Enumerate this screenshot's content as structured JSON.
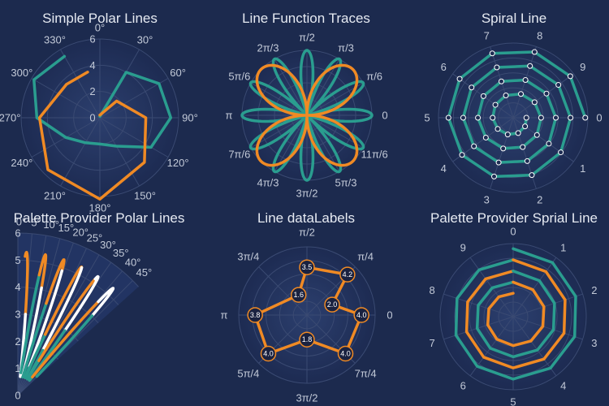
{
  "chart_data": [
    {
      "type": "line",
      "coordinate": "polar",
      "title": "Simple Polar Lines",
      "angle_labels": [
        "0°",
        "30°",
        "60°",
        "90°",
        "120°",
        "150°",
        "180°",
        "210°",
        "240°",
        "270°",
        "300°",
        "330°"
      ],
      "radial_labels": [
        "0",
        "2",
        "4",
        "6"
      ],
      "rlim": [
        0,
        6
      ],
      "series": [
        {
          "color": "#2a9d8f",
          "points": [
            [
              0,
              0.1
            ],
            [
              30,
              4
            ],
            [
              60,
              5.2
            ],
            [
              90,
              5.4
            ],
            [
              120,
              4.5
            ],
            [
              150,
              2.5
            ],
            [
              180,
              2
            ],
            [
              210,
              2.2
            ],
            [
              240,
              3
            ],
            [
              270,
              4.8
            ],
            [
              300,
              5.8
            ],
            [
              330,
              5.4
            ]
          ]
        },
        {
          "color": "#f08a24",
          "points": [
            [
              0,
              0.2
            ],
            [
              45,
              1.8
            ],
            [
              90,
              3.5
            ],
            [
              135,
              4.8
            ],
            [
              180,
              6.2
            ],
            [
              225,
              5.6
            ],
            [
              270,
              4.6
            ],
            [
              315,
              3.6
            ],
            [
              345,
              3.6
            ]
          ]
        }
      ]
    },
    {
      "type": "line",
      "coordinate": "polar",
      "title": "Line Function Traces",
      "angle_labels": [
        "0",
        "π/6",
        "π/3",
        "π/2",
        "2π/3",
        "5π/6",
        "π",
        "7π/6",
        "4π/3",
        "3π/2",
        "5π/3",
        "11π/6"
      ],
      "rlim": [
        0,
        1
      ],
      "series": [
        {
          "color": "#2a9d8f",
          "function": "r = |cos(6θ)|",
          "k": 6
        },
        {
          "color": "#f08a24",
          "function": "r = |sin(2θ)|",
          "k": 2
        }
      ]
    },
    {
      "type": "line",
      "coordinate": "polar",
      "title": "Spiral Line",
      "angle_labels": [
        "0",
        "1",
        "2",
        "3",
        "4",
        "5",
        "6",
        "7",
        "8",
        "9"
      ],
      "rlim": [
        0,
        8.5
      ],
      "series": [
        {
          "color": "#2a9d8f",
          "turns": 4,
          "points_per_turn": 10,
          "r_start": 1.5,
          "r_end": 8.2,
          "markers": true
        }
      ]
    },
    {
      "type": "line",
      "coordinate": "polar",
      "title": "Palette Provider Polar Lines",
      "angle_labels": [
        "0°",
        "5°",
        "10°",
        "15°",
        "20°",
        "25°",
        "30°",
        "35°",
        "40°",
        "45°"
      ],
      "radial_labels": [
        "0",
        "1",
        "2",
        "3",
        "4",
        "5",
        "6"
      ],
      "rlim": [
        0,
        6
      ],
      "thetalim": [
        0,
        45
      ],
      "series": [
        {
          "palette": [
            "#f08a24",
            "#ffffff",
            "#2a9d8f"
          ],
          "function": "oscillating",
          "segments": 6
        }
      ]
    },
    {
      "type": "line",
      "coordinate": "polar",
      "title": "Line dataLabels",
      "angle_labels": [
        "0",
        "π/4",
        "π/2",
        "3π/4",
        "π",
        "5π/4",
        "3π/2",
        "7π/4"
      ],
      "rlim": [
        0,
        5
      ],
      "series": [
        {
          "color": "#f08a24",
          "points": [
            [
              0,
              4.0
            ],
            [
              22.5,
              2.0
            ],
            [
              45,
              4.2
            ],
            [
              90,
              3.5
            ],
            [
              112.5,
              1.6
            ],
            [
              180,
              3.8
            ],
            [
              225,
              4.0
            ],
            [
              270,
              1.8
            ],
            [
              315,
              4.0
            ]
          ]
        }
      ]
    },
    {
      "type": "line",
      "coordinate": "polar",
      "title": "Palette Provider Sprial Line",
      "angle_labels": [
        "0",
        "1",
        "2",
        "3",
        "4",
        "5",
        "6",
        "7",
        "8",
        "9"
      ],
      "rlim": [
        0,
        10
      ],
      "series": [
        {
          "palette": [
            "#2a9d8f",
            "#f08a24"
          ],
          "turns": 4,
          "points_per_turn": 10,
          "r_start": 3.2,
          "r_end": 9.3
        }
      ]
    }
  ]
}
